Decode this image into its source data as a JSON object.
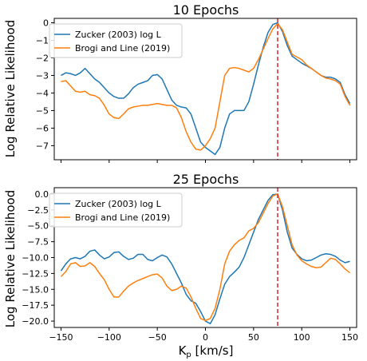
{
  "figure": {
    "ylabel_shared": "Log Relative Likelihood",
    "xlabel_shared": "K",
    "xlabel_sub": "p",
    "xlabel_unit": " [km/s]"
  },
  "colors": {
    "zucker": "#1f77b4",
    "brogi": "#ff7f0e",
    "vline": "#d62728"
  },
  "chart_data": [
    {
      "type": "line",
      "title": "10 Epochs",
      "xlabel": "",
      "ylabel": "Log Relative Likelihood",
      "xlim": [
        -157,
        157
      ],
      "ylim": [
        -7.8,
        0.25
      ],
      "xticks": [
        -150,
        -100,
        -50,
        0,
        50,
        100,
        150
      ],
      "xticklabels_visible": false,
      "yticks": [
        0,
        -1,
        -2,
        -3,
        -4,
        -5,
        -6,
        -7
      ],
      "yticklabels": [
        "0",
        "−1",
        "−2",
        "−3",
        "−4",
        "−5",
        "−6",
        "−7"
      ],
      "vline_x": 75,
      "legend_position": "upper-left",
      "grid": false,
      "series": [
        {
          "name": "Zucker (2003) log L",
          "color": "#1f77b4",
          "x": [
            -150,
            -145,
            -140,
            -135,
            -130,
            -125,
            -120,
            -115,
            -110,
            -105,
            -100,
            -95,
            -90,
            -85,
            -80,
            -75,
            -70,
            -65,
            -60,
            -55,
            -50,
            -45,
            -40,
            -35,
            -30,
            -25,
            -20,
            -15,
            -10,
            -5,
            0,
            5,
            10,
            15,
            20,
            25,
            30,
            35,
            40,
            45,
            50,
            55,
            60,
            65,
            70,
            75,
            80,
            85,
            90,
            95,
            100,
            105,
            110,
            115,
            120,
            125,
            130,
            135,
            140,
            145,
            150
          ],
          "y": [
            -3.0,
            -2.85,
            -2.9,
            -3.0,
            -2.85,
            -2.6,
            -2.9,
            -3.2,
            -3.4,
            -3.7,
            -4.0,
            -4.2,
            -4.3,
            -4.3,
            -4.05,
            -3.7,
            -3.5,
            -3.4,
            -3.3,
            -3.0,
            -2.95,
            -3.2,
            -3.8,
            -4.4,
            -4.7,
            -4.8,
            -4.85,
            -5.2,
            -6.0,
            -6.8,
            -7.1,
            -7.3,
            -7.5,
            -7.1,
            -6.0,
            -5.2,
            -5.0,
            -5.0,
            -5.0,
            -4.5,
            -3.5,
            -2.4,
            -1.4,
            -0.55,
            -0.1,
            0.0,
            -0.5,
            -1.3,
            -1.9,
            -2.1,
            -2.3,
            -2.45,
            -2.6,
            -2.8,
            -3.0,
            -3.1,
            -3.1,
            -3.2,
            -3.4,
            -4.1,
            -4.6
          ]
        },
        {
          "name": "Brogi and Line (2019)",
          "color": "#ff7f0e",
          "x": [
            -150,
            -145,
            -140,
            -135,
            -130,
            -125,
            -120,
            -115,
            -110,
            -105,
            -100,
            -95,
            -90,
            -85,
            -80,
            -75,
            -70,
            -65,
            -60,
            -55,
            -50,
            -45,
            -40,
            -35,
            -30,
            -25,
            -20,
            -15,
            -10,
            -5,
            0,
            5,
            10,
            15,
            20,
            25,
            30,
            35,
            40,
            45,
            50,
            55,
            60,
            65,
            70,
            75,
            80,
            85,
            90,
            95,
            100,
            105,
            110,
            115,
            120,
            125,
            130,
            135,
            140,
            145,
            150
          ],
          "y": [
            -3.35,
            -3.3,
            -3.6,
            -3.9,
            -3.95,
            -3.9,
            -4.1,
            -4.15,
            -4.3,
            -4.7,
            -5.2,
            -5.4,
            -5.45,
            -5.2,
            -4.9,
            -4.8,
            -4.75,
            -4.7,
            -4.7,
            -4.65,
            -4.6,
            -4.65,
            -4.7,
            -4.7,
            -4.85,
            -5.4,
            -6.2,
            -6.8,
            -7.2,
            -7.25,
            -7.0,
            -6.6,
            -6.0,
            -4.5,
            -3.0,
            -2.6,
            -2.55,
            -2.6,
            -2.7,
            -2.8,
            -2.6,
            -2.1,
            -1.5,
            -0.9,
            -0.35,
            -0.05,
            -0.4,
            -1.1,
            -1.8,
            -1.95,
            -2.1,
            -2.4,
            -2.6,
            -2.8,
            -3.0,
            -3.15,
            -3.2,
            -3.3,
            -3.5,
            -4.2,
            -4.7
          ]
        }
      ]
    },
    {
      "type": "line",
      "title": "25 Epochs",
      "xlabel": "K_p [km/s]",
      "ylabel": "Log Relative Likelihood",
      "xlim": [
        -157,
        157
      ],
      "ylim": [
        -21.0,
        1.0
      ],
      "xticks": [
        -150,
        -100,
        -50,
        0,
        50,
        100,
        150
      ],
      "xticklabels": [
        "−150",
        "−100",
        "−50",
        "0",
        "50",
        "100",
        "150"
      ],
      "yticks": [
        0,
        -2.5,
        -5,
        -7.5,
        -10,
        -12.5,
        -15,
        -17.5,
        -20
      ],
      "yticklabels": [
        "0.0",
        "−2.5",
        "−5.0",
        "−7.5",
        "−10.0",
        "−12.5",
        "−15.0",
        "−17.5",
        "−20.0"
      ],
      "vline_x": 75,
      "legend_position": "upper-left",
      "grid": false,
      "series": [
        {
          "name": "Zucker (2003) log L",
          "color": "#1f77b4",
          "x": [
            -150,
            -145,
            -140,
            -135,
            -130,
            -125,
            -120,
            -115,
            -110,
            -105,
            -100,
            -95,
            -90,
            -85,
            -80,
            -75,
            -70,
            -65,
            -60,
            -55,
            -50,
            -45,
            -40,
            -35,
            -30,
            -25,
            -20,
            -15,
            -10,
            -5,
            0,
            5,
            10,
            15,
            20,
            25,
            30,
            35,
            40,
            45,
            50,
            55,
            60,
            65,
            70,
            75,
            80,
            85,
            90,
            95,
            100,
            105,
            110,
            115,
            120,
            125,
            130,
            135,
            140,
            145,
            150
          ],
          "y": [
            -12.1,
            -11.0,
            -10.2,
            -10.0,
            -10.2,
            -9.8,
            -9.0,
            -8.8,
            -9.6,
            -10.2,
            -9.9,
            -9.2,
            -9.1,
            -9.8,
            -10.3,
            -10.1,
            -9.5,
            -9.5,
            -10.3,
            -10.5,
            -10.0,
            -9.6,
            -9.9,
            -11.0,
            -12.5,
            -14.0,
            -15.8,
            -16.8,
            -17.2,
            -18.5,
            -20.0,
            -20.4,
            -19.0,
            -16.5,
            -14.2,
            -13.0,
            -12.3,
            -11.5,
            -10.0,
            -8.0,
            -6.0,
            -4.0,
            -2.5,
            -1.0,
            -0.1,
            0.0,
            -2.5,
            -6.0,
            -8.5,
            -9.5,
            -10.2,
            -10.5,
            -10.4,
            -10.0,
            -9.6,
            -9.4,
            -9.5,
            -9.8,
            -10.4,
            -10.8,
            -10.6
          ]
        },
        {
          "name": "Brogi and Line (2019)",
          "color": "#ff7f0e",
          "x": [
            -150,
            -145,
            -140,
            -135,
            -130,
            -125,
            -120,
            -115,
            -110,
            -105,
            -100,
            -95,
            -90,
            -85,
            -80,
            -75,
            -70,
            -65,
            -60,
            -55,
            -50,
            -45,
            -40,
            -35,
            -30,
            -25,
            -20,
            -15,
            -10,
            -5,
            0,
            5,
            10,
            15,
            20,
            25,
            30,
            35,
            40,
            45,
            50,
            55,
            60,
            65,
            70,
            75,
            80,
            85,
            90,
            95,
            100,
            105,
            110,
            115,
            120,
            125,
            130,
            135,
            140,
            145,
            150
          ],
          "y": [
            -13.0,
            -12.2,
            -11.0,
            -10.8,
            -11.4,
            -11.3,
            -10.8,
            -11.4,
            -12.5,
            -13.5,
            -15.0,
            -16.2,
            -16.2,
            -15.3,
            -14.5,
            -14.0,
            -13.6,
            -13.3,
            -13.0,
            -12.7,
            -12.6,
            -13.2,
            -14.5,
            -15.2,
            -15.0,
            -14.5,
            -14.8,
            -16.2,
            -18.0,
            -19.6,
            -19.9,
            -19.6,
            -18.0,
            -15.0,
            -11.0,
            -9.0,
            -8.0,
            -7.3,
            -6.9,
            -5.8,
            -5.4,
            -4.5,
            -3.0,
            -1.5,
            -0.3,
            0.0,
            -2.0,
            -5.0,
            -8.0,
            -9.6,
            -10.5,
            -11.0,
            -11.4,
            -11.6,
            -11.5,
            -10.8,
            -10.1,
            -10.3,
            -11.0,
            -11.8,
            -12.4
          ]
        }
      ]
    }
  ]
}
